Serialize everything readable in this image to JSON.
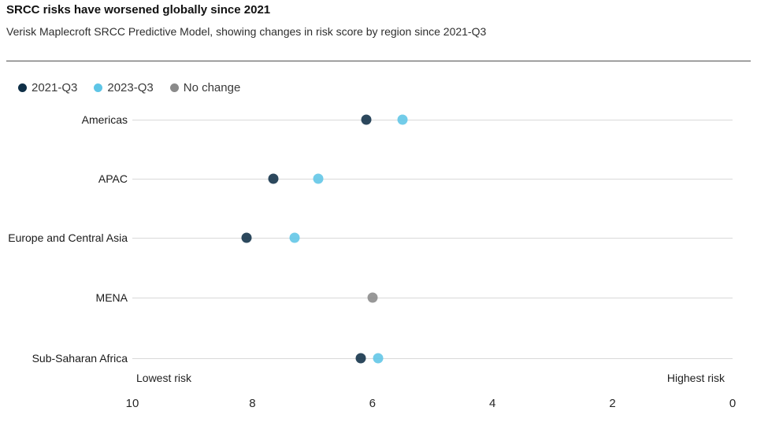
{
  "chart_data": {
    "type": "scatter",
    "subtype": "dumbbell-dot-plot",
    "title": "SRCC risks have worsened globally since 2021",
    "subtitle": "Verisk Maplecroft SRCC Predictive Model, showing changes in risk score by region since 2021-Q3",
    "legend": [
      {
        "label": "2021-Q3",
        "color": "#0f2f47"
      },
      {
        "label": "2023-Q3",
        "color": "#5ec5e6"
      },
      {
        "label": "No change",
        "color": "#8a8a8a"
      }
    ],
    "legend_position": "top-left",
    "categories": [
      "Americas",
      "APAC",
      "Europe and Central Asia",
      "MENA",
      "Sub-Saharan Africa"
    ],
    "series": [
      {
        "name": "2021-Q3",
        "values": [
          6.1,
          7.65,
          8.1,
          null,
          6.2
        ]
      },
      {
        "name": "2023-Q3",
        "values": [
          5.5,
          6.9,
          7.3,
          null,
          5.9
        ]
      },
      {
        "name": "No change",
        "values": [
          null,
          null,
          null,
          6.0,
          null
        ]
      }
    ],
    "xlim": [
      10,
      0
    ],
    "xticks": [
      10,
      8,
      6,
      4,
      2,
      0
    ],
    "xlabel_left": "Lowest risk",
    "xlabel_right": "Highest risk",
    "grid": "one horizontal line per category row",
    "axis_reversed": true
  }
}
